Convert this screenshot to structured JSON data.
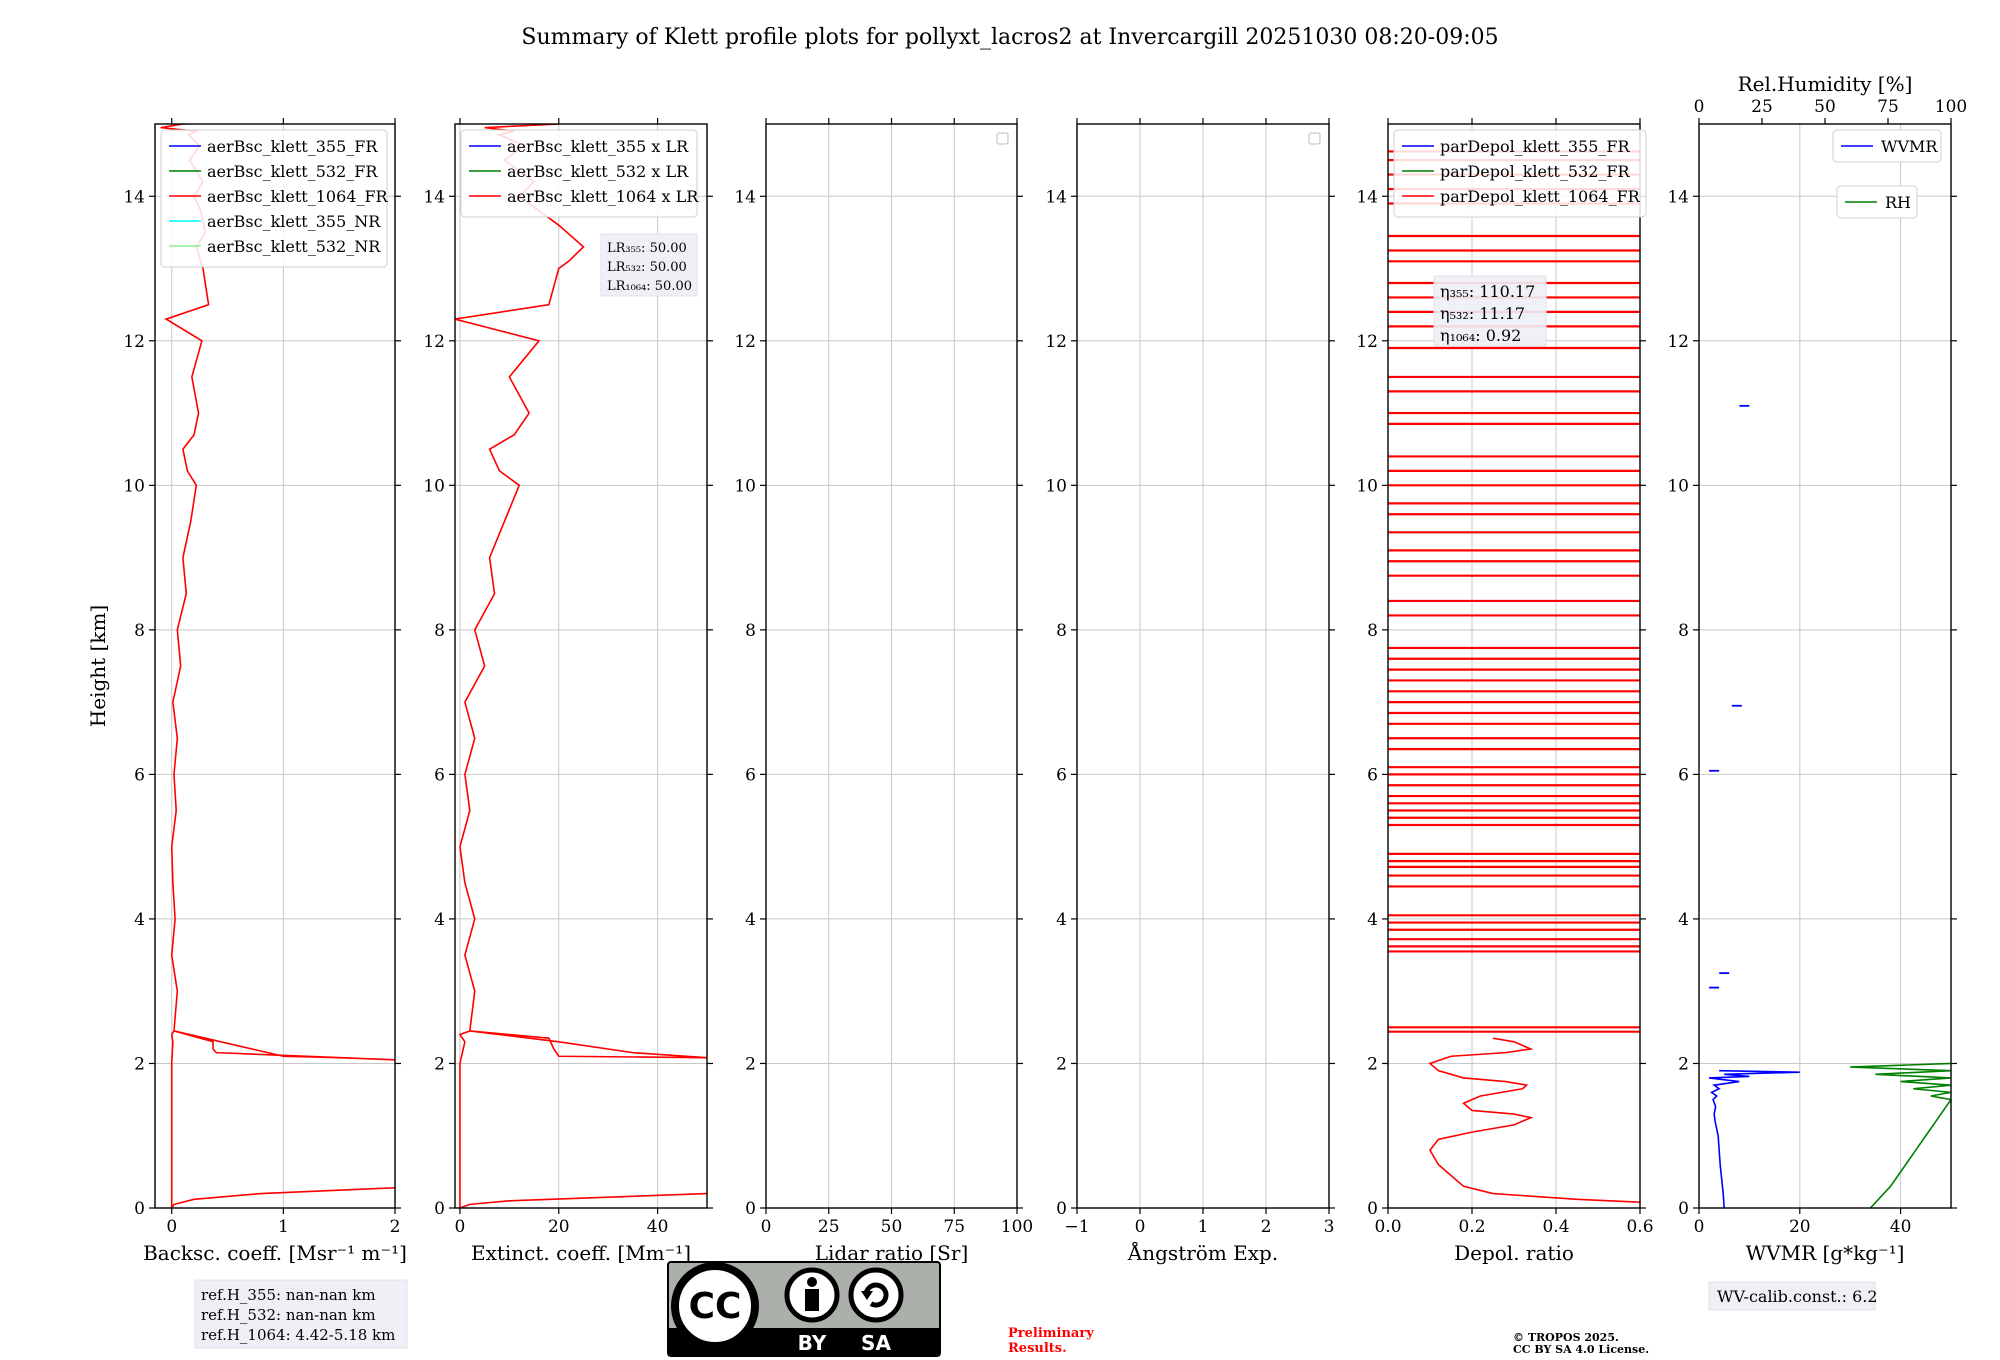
{
  "title": "Summary of Klett profile plots for pollyxt_lacros2 at Invercargill 20251030 08:20-09:05",
  "colors": {
    "r355": "#0000ff",
    "r532": "#008000",
    "r1064": "#ff0000",
    "nr355": "#00ffff",
    "nr532": "#90ee90",
    "wvmr": "#0000ff",
    "rh": "#008000",
    "prelim": "#ff0000"
  },
  "chart_data": [
    {
      "id": "bsc",
      "type": "line",
      "xlabel": "Backsc. coeff. [Msr⁻¹ m⁻¹]",
      "ylabel": "Height [km]",
      "xlim": [
        -0.15,
        2.0
      ],
      "ylim": [
        0,
        15
      ],
      "xticks": [
        "0",
        "1",
        "2"
      ],
      "yticks": [
        "0",
        "2",
        "4",
        "6",
        "8",
        "10",
        "12",
        "14"
      ],
      "grid": true,
      "legend_position": "upper-left",
      "legend": [
        "aerBsc_klett_355_FR",
        "aerBsc_klett_532_FR",
        "aerBsc_klett_1064_FR",
        "aerBsc_klett_355_NR",
        "aerBsc_klett_532_NR"
      ],
      "series": [
        {
          "name": "aerBsc_klett_1064_FR",
          "color": "#ff0000",
          "x": [
            2.0,
            0.8,
            0.2,
            0.02,
            0.0,
            0.0,
            0.0,
            0.01,
            0.0,
            0.02,
            1.0,
            1.5,
            2.0,
            0.4,
            0.37,
            0.37,
            0.02,
            0.05,
            0.0,
            0.03,
            0.01,
            0.0,
            0.04,
            0.02,
            0.05,
            0.01,
            0.08,
            0.05,
            0.13,
            0.1,
            0.17,
            0.22,
            0.14,
            0.1,
            0.2,
            0.24,
            0.18,
            0.27,
            -0.05,
            0.33,
            0.28,
            0.22,
            0.3,
            0.26,
            0.2,
            0.28,
            0.16,
            0.25,
            0.15,
            0.22,
            -0.1,
            0.1,
            0.15
          ],
          "y": [
            0.28,
            0.2,
            0.12,
            0.05,
            0.0,
            1.0,
            2.0,
            2.3,
            2.4,
            2.45,
            2.1,
            2.08,
            2.05,
            2.15,
            2.2,
            2.3,
            2.45,
            3.0,
            3.5,
            4.0,
            4.5,
            5.0,
            5.5,
            6.0,
            6.5,
            7.0,
            7.5,
            8.0,
            8.5,
            9.0,
            9.5,
            10.0,
            10.2,
            10.5,
            10.7,
            11.0,
            11.5,
            12.0,
            12.3,
            12.5,
            13.0,
            13.3,
            13.5,
            13.8,
            14.0,
            14.2,
            14.5,
            14.7,
            14.85,
            14.9,
            14.95,
            15.0,
            15.0
          ]
        }
      ]
    },
    {
      "id": "ext",
      "type": "line",
      "xlabel": "Extinct. coeff. [Mm⁻¹]",
      "xlim": [
        -1,
        50
      ],
      "ylim": [
        0,
        15
      ],
      "xticks": [
        "0",
        "20",
        "40"
      ],
      "yticks": [
        "0",
        "2",
        "4",
        "6",
        "8",
        "10",
        "12",
        "14"
      ],
      "grid": true,
      "legend_position": "upper-left",
      "legend": [
        "aerBsc_klett_355 x LR",
        "aerBsc_klett_532 x LR",
        "aerBsc_klett_1064 x LR"
      ],
      "lr_box": [
        "LR₃₅₅: 50.00",
        "LR₅₃₂: 50.00",
        "LR₁₀₆₄: 50.00"
      ],
      "series": [
        {
          "name": "aerBsc_klett_1064 x LR",
          "color": "#ff0000",
          "x": [
            50,
            30,
            10,
            2,
            0,
            0,
            0,
            1,
            0,
            2,
            20,
            35,
            50,
            20,
            19,
            18,
            2,
            3,
            1,
            3,
            1,
            0,
            2,
            1,
            3,
            1,
            5,
            3,
            7,
            6,
            9,
            12,
            8,
            6,
            11,
            14,
            10,
            16,
            -1,
            18,
            20,
            22,
            25,
            20,
            12,
            15,
            9,
            13,
            8,
            11,
            5,
            20,
            20
          ],
          "y": [
            0.2,
            0.15,
            0.1,
            0.05,
            0.0,
            1.0,
            2.0,
            2.3,
            2.4,
            2.45,
            2.3,
            2.15,
            2.08,
            2.1,
            2.2,
            2.35,
            2.45,
            3.0,
            3.5,
            4.0,
            4.5,
            5.0,
            5.5,
            6.0,
            6.5,
            7.0,
            7.5,
            8.0,
            8.5,
            9.0,
            9.5,
            10.0,
            10.2,
            10.5,
            10.7,
            11.0,
            11.5,
            12.0,
            12.3,
            12.5,
            13.0,
            13.1,
            13.3,
            13.6,
            14.0,
            14.2,
            14.5,
            14.7,
            14.85,
            14.9,
            14.95,
            15.0,
            15.0
          ]
        }
      ]
    },
    {
      "id": "lr",
      "type": "line",
      "xlabel": "Lidar ratio [Sr]",
      "xlim": [
        0,
        100
      ],
      "ylim": [
        0,
        15
      ],
      "xticks": [
        "0",
        "25",
        "50",
        "75",
        "100"
      ],
      "yticks": [
        "0",
        "2",
        "4",
        "6",
        "8",
        "10",
        "12",
        "14"
      ],
      "grid": true,
      "series": []
    },
    {
      "id": "ang",
      "type": "line",
      "xlabel": "Ångström Exp.",
      "xlim": [
        -1,
        3
      ],
      "ylim": [
        0,
        15
      ],
      "xticks": [
        "−1",
        "0",
        "1",
        "2",
        "3"
      ],
      "yticks": [
        "0",
        "2",
        "4",
        "6",
        "8",
        "10",
        "12",
        "14"
      ],
      "grid": true,
      "series": []
    },
    {
      "id": "dep",
      "type": "line",
      "xlabel": "Depol. ratio",
      "xlim": [
        0.0,
        0.6
      ],
      "ylim": [
        0,
        15
      ],
      "xticks": [
        "0.0",
        "0.2",
        "0.4",
        "0.6"
      ],
      "yticks": [
        "0",
        "2",
        "4",
        "6",
        "8",
        "10",
        "12",
        "14"
      ],
      "grid": true,
      "legend_position": "upper-left",
      "legend": [
        "parDepol_klett_355_FR",
        "parDepol_klett_532_FR",
        "parDepol_klett_1064_FR"
      ],
      "eta_box": [
        "η₃₅₅: 110.17",
        "η₅₃₂: 11.17",
        "η₁₀₆₄: 0.92"
      ],
      "series": [
        {
          "name": "parDepol_klett_1064_FR",
          "color": "#ff0000",
          "x": [
            0.6,
            0.45,
            0.25,
            0.18,
            0.15,
            0.12,
            0.1,
            0.12,
            0.2,
            0.3,
            0.34,
            0.3,
            0.2,
            0.18,
            0.22,
            0.32,
            0.33,
            0.28,
            0.18,
            0.12,
            0.1,
            0.15,
            0.28,
            0.34,
            0.3,
            0.25
          ],
          "y": [
            0.08,
            0.12,
            0.2,
            0.3,
            0.45,
            0.6,
            0.8,
            0.95,
            1.05,
            1.15,
            1.25,
            1.3,
            1.35,
            1.45,
            1.55,
            1.65,
            1.7,
            1.75,
            1.8,
            1.9,
            2.0,
            2.1,
            2.15,
            2.2,
            2.3,
            2.35
          ]
        },
        {
          "name": "parDepol_klett_1064_FR_bands",
          "color": "#ff0000",
          "segments": [
            [
              2.44,
              0.6
            ],
            [
              2.5,
              0.6
            ],
            [
              3.55,
              0.6
            ],
            [
              3.62,
              0.6
            ],
            [
              3.72,
              0.6
            ],
            [
              3.85,
              0.6
            ],
            [
              3.95,
              0.6
            ],
            [
              4.05,
              0.6
            ],
            [
              4.45,
              0.6
            ],
            [
              4.6,
              0.6
            ],
            [
              4.72,
              0.6
            ],
            [
              4.8,
              0.6
            ],
            [
              4.9,
              0.6
            ],
            [
              5.3,
              0.6
            ],
            [
              5.4,
              0.6
            ],
            [
              5.5,
              0.6
            ],
            [
              5.6,
              0.6
            ],
            [
              5.7,
              0.6
            ],
            [
              5.85,
              0.6
            ],
            [
              6.0,
              0.6
            ],
            [
              6.1,
              0.6
            ],
            [
              6.35,
              0.6
            ],
            [
              6.5,
              0.6
            ],
            [
              6.7,
              0.6
            ],
            [
              6.85,
              0.6
            ],
            [
              7.0,
              0.6
            ],
            [
              7.15,
              0.6
            ],
            [
              7.3,
              0.6
            ],
            [
              7.45,
              0.6
            ],
            [
              7.6,
              0.6
            ],
            [
              7.75,
              0.6
            ],
            [
              8.2,
              0.6
            ],
            [
              8.4,
              0.6
            ],
            [
              8.75,
              0.6
            ],
            [
              8.95,
              0.6
            ],
            [
              9.1,
              0.6
            ],
            [
              9.35,
              0.6
            ],
            [
              9.6,
              0.6
            ],
            [
              9.75,
              0.6
            ],
            [
              10.0,
              0.6
            ],
            [
              10.2,
              0.6
            ],
            [
              10.4,
              0.6
            ],
            [
              10.85,
              0.6
            ],
            [
              11.0,
              0.6
            ],
            [
              11.3,
              0.6
            ],
            [
              11.5,
              0.6
            ],
            [
              11.9,
              0.6
            ],
            [
              12.2,
              0.6
            ],
            [
              12.4,
              0.6
            ],
            [
              12.6,
              0.6
            ],
            [
              12.8,
              0.6
            ],
            [
              13.1,
              0.6
            ],
            [
              13.25,
              0.6
            ],
            [
              13.45,
              0.6
            ],
            [
              13.9,
              0.6
            ],
            [
              14.1,
              0.6
            ],
            [
              14.3,
              0.6
            ],
            [
              14.5,
              0.6
            ],
            [
              14.62,
              0.6
            ]
          ]
        }
      ]
    },
    {
      "id": "wv",
      "type": "line",
      "xlabel": "WVMR [g*kg⁻¹]",
      "xlim": [
        0,
        50
      ],
      "ylim": [
        0,
        15
      ],
      "xticks": [
        "0",
        "20",
        "40"
      ],
      "yticks": [
        "0",
        "2",
        "4",
        "6",
        "8",
        "10",
        "12",
        "14"
      ],
      "top_xlabel": "Rel.Humidity [%]",
      "top_xlim": [
        0,
        100
      ],
      "top_xticks": [
        "0",
        "25",
        "50",
        "75",
        "100"
      ],
      "grid": true,
      "legend": [
        "WVMR",
        "RH"
      ],
      "calib_text": "WV-calib.const.: 6.2",
      "series": [
        {
          "name": "WVMR",
          "color": "#0000ff",
          "x": [
            5,
            4.8,
            4.5,
            4.2,
            4.0,
            3.8,
            3.5,
            3.2,
            3.0,
            3.3,
            2.8,
            3.5,
            2.5,
            4.0,
            3.0,
            8,
            2.0,
            10,
            5,
            20,
            4
          ],
          "y": [
            0.0,
            0.2,
            0.4,
            0.6,
            0.8,
            1.0,
            1.1,
            1.2,
            1.3,
            1.4,
            1.5,
            1.55,
            1.6,
            1.65,
            1.7,
            1.75,
            1.8,
            1.82,
            1.85,
            1.88,
            1.9
          ],
          "points": [
            [
              3.0,
              3.05
            ],
            [
              5.0,
              3.25
            ],
            [
              7.5,
              6.95
            ],
            [
              3.0,
              6.05
            ],
            [
              9.0,
              11.1
            ]
          ]
        },
        {
          "name": "RH",
          "color": "#008000",
          "x_rh": [
            68,
            72,
            76,
            80,
            84,
            88,
            90,
            92,
            94,
            96,
            98,
            100,
            92,
            100,
            85,
            100,
            80,
            100,
            70,
            100,
            60,
            100
          ],
          "y": [
            0.0,
            0.15,
            0.3,
            0.5,
            0.7,
            0.9,
            1.0,
            1.1,
            1.2,
            1.3,
            1.4,
            1.5,
            1.55,
            1.6,
            1.65,
            1.7,
            1.75,
            1.8,
            1.85,
            1.9,
            1.95,
            2.0
          ]
        }
      ]
    }
  ],
  "ref_box": [
    "ref.H_355: nan-nan km",
    "ref.H_532: nan-nan km",
    "ref.H_1064: 4.42-5.18 km"
  ],
  "license_logo": {
    "cc": "CC",
    "by": "BY",
    "sa": "SA"
  },
  "preliminary": [
    "Preliminary",
    "Results."
  ],
  "copyright": [
    "© TROPOS 2025.",
    "CC BY SA 4.0 License."
  ]
}
